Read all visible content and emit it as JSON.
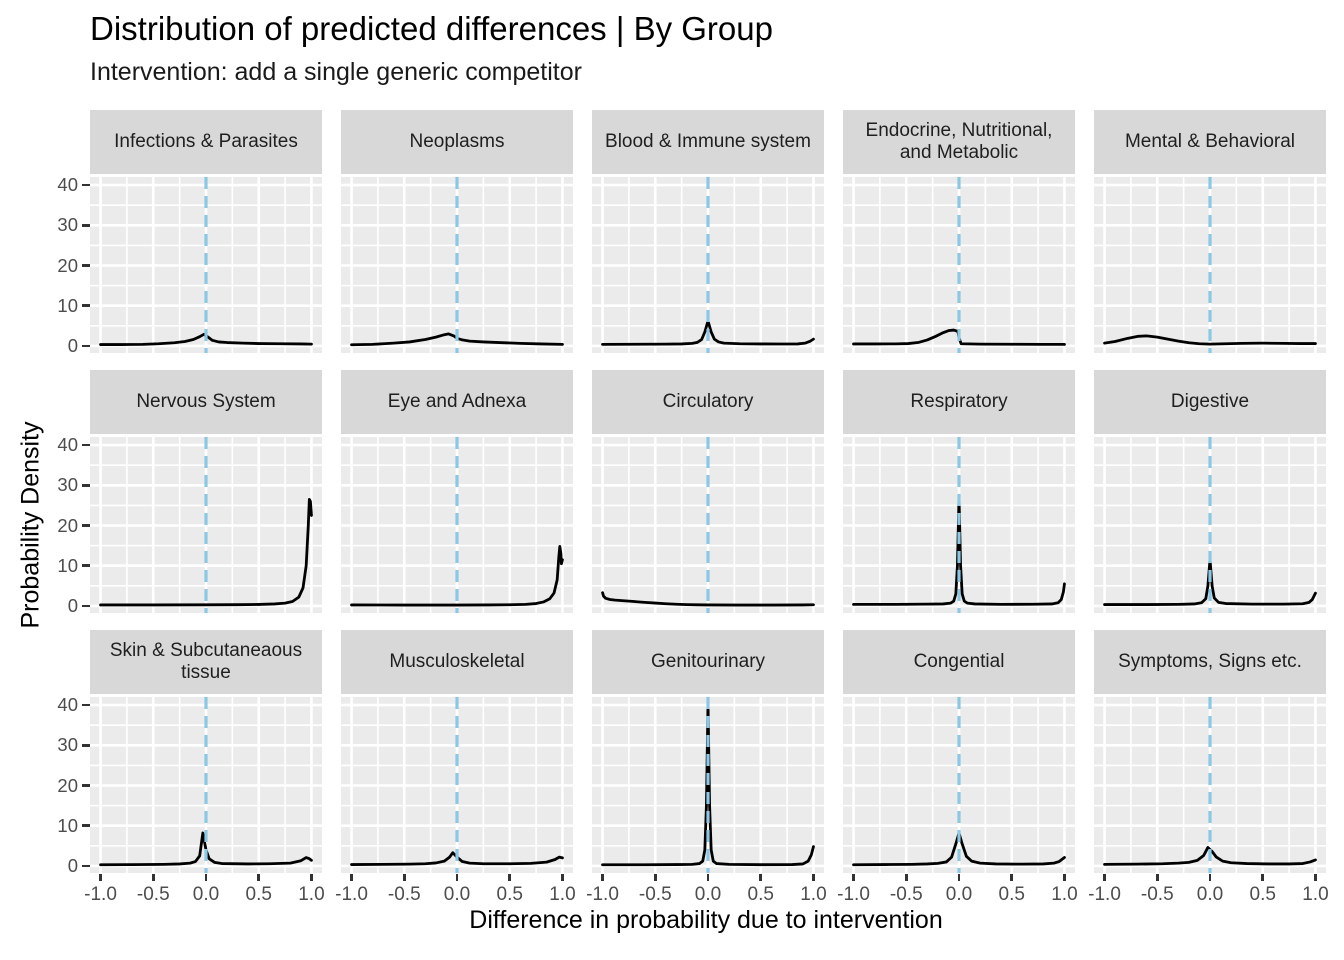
{
  "title": "Distribution of predicted differences | By Group",
  "subtitle": "Intervention: add a single generic competitor",
  "colors": {
    "panel_background": "#ebebeb",
    "strip_background": "#d8d8d8",
    "gridline": "#ffffff",
    "curve": "#000000",
    "reference_line": "#8bc8e5",
    "tick_text": "#4d4d4d",
    "tick_mark": "#333333"
  },
  "chart_data": {
    "type": "line",
    "description": "Faceted density curves (3x5 grid), one per diagnosis group, with dashed vertical reference line at x=0",
    "x": {
      "title": "Difference in probability due to intervention",
      "range": [
        -1.1,
        1.1
      ],
      "ticks": [
        -1,
        -0.5,
        0,
        0.5,
        1
      ],
      "tick_labels": [
        "-1.0",
        "-0.5",
        "0.0",
        "0.5",
        "1.0"
      ],
      "minor_ticks": [
        -0.75,
        -0.25,
        0.25,
        0.75
      ]
    },
    "y": {
      "title": "Probability Density",
      "range": [
        -1.75,
        42
      ],
      "ticks": [
        40,
        30,
        20,
        10,
        0
      ],
      "tick_labels": [
        "40",
        "30",
        "20",
        "10",
        "0"
      ],
      "minor_ticks": [
        35,
        25,
        15,
        5
      ]
    },
    "reference_line_x": 0,
    "grid": true,
    "legend": "none",
    "facets": [
      {
        "label": "Infections & Parasites",
        "points": [
          [
            -1,
            0.35
          ],
          [
            -0.8,
            0.35
          ],
          [
            -0.6,
            0.4
          ],
          [
            -0.45,
            0.55
          ],
          [
            -0.3,
            0.8
          ],
          [
            -0.2,
            1.1
          ],
          [
            -0.12,
            1.6
          ],
          [
            -0.06,
            2.3
          ],
          [
            -0.02,
            2.9
          ],
          [
            0.02,
            2.2
          ],
          [
            0.06,
            1.4
          ],
          [
            0.12,
            1.0
          ],
          [
            0.2,
            0.85
          ],
          [
            0.35,
            0.7
          ],
          [
            0.5,
            0.6
          ],
          [
            0.7,
            0.55
          ],
          [
            0.9,
            0.5
          ],
          [
            1,
            0.45
          ]
        ]
      },
      {
        "label": "Neoplasms",
        "points": [
          [
            -1,
            0.3
          ],
          [
            -0.8,
            0.4
          ],
          [
            -0.6,
            0.7
          ],
          [
            -0.45,
            1.0
          ],
          [
            -0.3,
            1.6
          ],
          [
            -0.2,
            2.2
          ],
          [
            -0.12,
            2.8
          ],
          [
            -0.08,
            3.0
          ],
          [
            -0.03,
            2.5
          ],
          [
            0,
            1.9
          ],
          [
            0.05,
            1.5
          ],
          [
            0.12,
            1.2
          ],
          [
            0.25,
            1.0
          ],
          [
            0.4,
            0.85
          ],
          [
            0.6,
            0.65
          ],
          [
            0.8,
            0.5
          ],
          [
            1,
            0.4
          ]
        ]
      },
      {
        "label": "Blood & Immune system",
        "points": [
          [
            -1,
            0.4
          ],
          [
            -0.7,
            0.42
          ],
          [
            -0.4,
            0.45
          ],
          [
            -0.25,
            0.5
          ],
          [
            -0.15,
            0.65
          ],
          [
            -0.1,
            0.9
          ],
          [
            -0.06,
            1.6
          ],
          [
            -0.03,
            3.5
          ],
          [
            0,
            6.2
          ],
          [
            0.03,
            3.5
          ],
          [
            0.06,
            1.7
          ],
          [
            0.1,
            1.0
          ],
          [
            0.15,
            0.7
          ],
          [
            0.3,
            0.55
          ],
          [
            0.5,
            0.5
          ],
          [
            0.7,
            0.48
          ],
          [
            0.85,
            0.5
          ],
          [
            0.92,
            0.7
          ],
          [
            0.97,
            1.2
          ],
          [
            1,
            1.7
          ]
        ]
      },
      {
        "label": "Endocrine, Nutritional, and Metabolic",
        "points": [
          [
            -1,
            0.5
          ],
          [
            -0.8,
            0.5
          ],
          [
            -0.6,
            0.52
          ],
          [
            -0.48,
            0.6
          ],
          [
            -0.38,
            0.9
          ],
          [
            -0.3,
            1.5
          ],
          [
            -0.22,
            2.4
          ],
          [
            -0.15,
            3.3
          ],
          [
            -0.1,
            3.8
          ],
          [
            -0.05,
            3.95
          ],
          [
            -0.01,
            3.6
          ],
          [
            0,
            2.0
          ],
          [
            0.02,
            0.55
          ],
          [
            0.2,
            0.45
          ],
          [
            0.5,
            0.42
          ],
          [
            0.8,
            0.4
          ],
          [
            1,
            0.4
          ]
        ]
      },
      {
        "label": "Mental & Behavioral",
        "points": [
          [
            -1,
            0.7
          ],
          [
            -0.9,
            1.1
          ],
          [
            -0.78,
            1.9
          ],
          [
            -0.68,
            2.4
          ],
          [
            -0.6,
            2.5
          ],
          [
            -0.5,
            2.2
          ],
          [
            -0.4,
            1.7
          ],
          [
            -0.3,
            1.2
          ],
          [
            -0.2,
            0.8
          ],
          [
            -0.1,
            0.55
          ],
          [
            0,
            0.45
          ],
          [
            0.15,
            0.55
          ],
          [
            0.3,
            0.65
          ],
          [
            0.5,
            0.7
          ],
          [
            0.7,
            0.65
          ],
          [
            0.85,
            0.6
          ],
          [
            1,
            0.6
          ]
        ]
      },
      {
        "label": "Nervous System",
        "points": [
          [
            -1,
            0.25
          ],
          [
            -0.5,
            0.25
          ],
          [
            0,
            0.28
          ],
          [
            0.3,
            0.32
          ],
          [
            0.5,
            0.38
          ],
          [
            0.65,
            0.5
          ],
          [
            0.75,
            0.7
          ],
          [
            0.82,
            1.1
          ],
          [
            0.88,
            2.2
          ],
          [
            0.92,
            4.5
          ],
          [
            0.95,
            10
          ],
          [
            0.97,
            20
          ],
          [
            0.98,
            26.5
          ],
          [
            0.99,
            26
          ],
          [
            1,
            22.5
          ]
        ]
      },
      {
        "label": "Eye and Adnexa",
        "points": [
          [
            -1,
            0.25
          ],
          [
            -0.5,
            0.22
          ],
          [
            0,
            0.22
          ],
          [
            0.3,
            0.25
          ],
          [
            0.5,
            0.3
          ],
          [
            0.65,
            0.4
          ],
          [
            0.75,
            0.6
          ],
          [
            0.82,
            1.0
          ],
          [
            0.88,
            1.8
          ],
          [
            0.92,
            3.2
          ],
          [
            0.95,
            6.5
          ],
          [
            0.965,
            12
          ],
          [
            0.975,
            14.8
          ],
          [
            0.985,
            13
          ],
          [
            0.99,
            10.5
          ],
          [
            1,
            11.5
          ]
        ]
      },
      {
        "label": "Circulatory",
        "points": [
          [
            -1,
            3.3
          ],
          [
            -0.99,
            2.4
          ],
          [
            -0.97,
            1.9
          ],
          [
            -0.93,
            1.6
          ],
          [
            -0.88,
            1.45
          ],
          [
            -0.8,
            1.3
          ],
          [
            -0.7,
            1.1
          ],
          [
            -0.6,
            0.9
          ],
          [
            -0.5,
            0.72
          ],
          [
            -0.4,
            0.55
          ],
          [
            -0.3,
            0.42
          ],
          [
            -0.2,
            0.33
          ],
          [
            -0.1,
            0.28
          ],
          [
            0,
            0.25
          ],
          [
            0.3,
            0.22
          ],
          [
            0.6,
            0.22
          ],
          [
            0.9,
            0.25
          ],
          [
            1,
            0.3
          ]
        ]
      },
      {
        "label": "Respiratory",
        "points": [
          [
            -1,
            0.4
          ],
          [
            -0.6,
            0.4
          ],
          [
            -0.3,
            0.45
          ],
          [
            -0.15,
            0.5
          ],
          [
            -0.08,
            0.7
          ],
          [
            -0.05,
            1.2
          ],
          [
            -0.03,
            3
          ],
          [
            -0.015,
            10
          ],
          [
            0,
            27
          ],
          [
            0.015,
            10
          ],
          [
            0.03,
            3
          ],
          [
            0.05,
            1.2
          ],
          [
            0.08,
            0.7
          ],
          [
            0.15,
            0.5
          ],
          [
            0.4,
            0.4
          ],
          [
            0.7,
            0.42
          ],
          [
            0.88,
            0.5
          ],
          [
            0.94,
            0.8
          ],
          [
            0.97,
            1.6
          ],
          [
            0.99,
            3.5
          ],
          [
            1,
            5.5
          ]
        ]
      },
      {
        "label": "Digestive",
        "points": [
          [
            -1,
            0.35
          ],
          [
            -0.6,
            0.35
          ],
          [
            -0.3,
            0.4
          ],
          [
            -0.15,
            0.5
          ],
          [
            -0.08,
            0.8
          ],
          [
            -0.04,
            1.8
          ],
          [
            -0.02,
            5
          ],
          [
            0,
            11.5
          ],
          [
            0.02,
            5
          ],
          [
            0.04,
            2
          ],
          [
            0.08,
            0.9
          ],
          [
            0.15,
            0.6
          ],
          [
            0.4,
            0.45
          ],
          [
            0.7,
            0.45
          ],
          [
            0.88,
            0.55
          ],
          [
            0.94,
            0.9
          ],
          [
            0.97,
            1.6
          ],
          [
            1,
            3.2
          ]
        ]
      },
      {
        "label": "Skin & Subcutaneaous tissue",
        "points": [
          [
            -1,
            0.3
          ],
          [
            -0.7,
            0.33
          ],
          [
            -0.4,
            0.4
          ],
          [
            -0.25,
            0.5
          ],
          [
            -0.15,
            0.7
          ],
          [
            -0.1,
            1.1
          ],
          [
            -0.06,
            2.5
          ],
          [
            -0.03,
            8.2
          ],
          [
            0,
            4
          ],
          [
            0.03,
            1.8
          ],
          [
            0.08,
            0.9
          ],
          [
            0.15,
            0.6
          ],
          [
            0.4,
            0.5
          ],
          [
            0.6,
            0.55
          ],
          [
            0.8,
            0.7
          ],
          [
            0.9,
            1.3
          ],
          [
            0.95,
            2.1
          ],
          [
            0.98,
            1.8
          ],
          [
            1,
            1.4
          ]
        ]
      },
      {
        "label": "Musculoskeletal",
        "points": [
          [
            -1,
            0.35
          ],
          [
            -0.7,
            0.4
          ],
          [
            -0.45,
            0.45
          ],
          [
            -0.3,
            0.55
          ],
          [
            -0.2,
            0.75
          ],
          [
            -0.12,
            1.2
          ],
          [
            -0.07,
            2.2
          ],
          [
            -0.04,
            3.3
          ],
          [
            0,
            2.2
          ],
          [
            0.05,
            1.1
          ],
          [
            0.12,
            0.7
          ],
          [
            0.25,
            0.55
          ],
          [
            0.5,
            0.55
          ],
          [
            0.7,
            0.65
          ],
          [
            0.85,
            0.95
          ],
          [
            0.93,
            1.6
          ],
          [
            0.97,
            2.2
          ],
          [
            1,
            2.0
          ]
        ]
      },
      {
        "label": "Genitourinary",
        "points": [
          [
            -1,
            0.3
          ],
          [
            -0.6,
            0.3
          ],
          [
            -0.3,
            0.35
          ],
          [
            -0.15,
            0.4
          ],
          [
            -0.08,
            0.6
          ],
          [
            -0.05,
            1.2
          ],
          [
            -0.03,
            4
          ],
          [
            -0.015,
            15
          ],
          [
            0,
            40.5
          ],
          [
            0.015,
            15
          ],
          [
            0.03,
            4
          ],
          [
            0.05,
            1.2
          ],
          [
            0.08,
            0.6
          ],
          [
            0.2,
            0.4
          ],
          [
            0.5,
            0.32
          ],
          [
            0.8,
            0.35
          ],
          [
            0.9,
            0.5
          ],
          [
            0.95,
            1.2
          ],
          [
            0.98,
            2.8
          ],
          [
            1,
            4.8
          ]
        ]
      },
      {
        "label": "Congential",
        "points": [
          [
            -1,
            0.3
          ],
          [
            -0.7,
            0.35
          ],
          [
            -0.45,
            0.4
          ],
          [
            -0.3,
            0.5
          ],
          [
            -0.2,
            0.65
          ],
          [
            -0.12,
            1.0
          ],
          [
            -0.07,
            2.2
          ],
          [
            -0.03,
            5.5
          ],
          [
            0,
            8.2
          ],
          [
            0.03,
            5.5
          ],
          [
            0.07,
            2.4
          ],
          [
            0.12,
            1.2
          ],
          [
            0.2,
            0.7
          ],
          [
            0.35,
            0.5
          ],
          [
            0.6,
            0.45
          ],
          [
            0.8,
            0.5
          ],
          [
            0.9,
            0.7
          ],
          [
            0.95,
            1.1
          ],
          [
            1,
            2.1
          ]
        ]
      },
      {
        "label": "Symptoms, Signs etc.",
        "points": [
          [
            -1,
            0.4
          ],
          [
            -0.7,
            0.45
          ],
          [
            -0.45,
            0.55
          ],
          [
            -0.3,
            0.7
          ],
          [
            -0.2,
            0.9
          ],
          [
            -0.12,
            1.4
          ],
          [
            -0.06,
            2.6
          ],
          [
            -0.02,
            4.6
          ],
          [
            0.02,
            3.6
          ],
          [
            0.06,
            2.2
          ],
          [
            0.12,
            1.2
          ],
          [
            0.2,
            0.8
          ],
          [
            0.35,
            0.6
          ],
          [
            0.55,
            0.5
          ],
          [
            0.75,
            0.5
          ],
          [
            0.88,
            0.6
          ],
          [
            0.95,
            1.0
          ],
          [
            1,
            1.5
          ]
        ]
      }
    ]
  }
}
